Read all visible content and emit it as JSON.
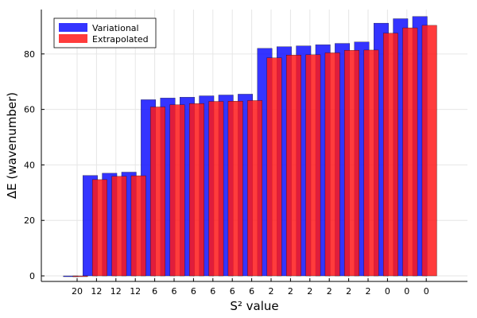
{
  "chart_data": {
    "type": "bar",
    "xlabel": "S² value",
    "ylabel": "ΔE (wavenumber)",
    "categories": [
      "20",
      "12",
      "12",
      "12",
      "6",
      "6",
      "6",
      "6",
      "6",
      "6",
      "2",
      "2",
      "2",
      "2",
      "2",
      "2",
      "0",
      "0",
      "0"
    ],
    "ylim": [
      -2,
      96
    ],
    "yticks": [
      0,
      20,
      40,
      60,
      80
    ],
    "grid": true,
    "legend_position": "top-left",
    "series": [
      {
        "name": "Variational",
        "color": "#1010ff",
        "values": [
          0,
          36.2,
          37.0,
          37.4,
          63.5,
          64.1,
          64.4,
          64.9,
          65.2,
          65.5,
          82.0,
          82.6,
          82.9,
          83.3,
          83.8,
          84.3,
          91.1,
          92.7,
          93.5
        ]
      },
      {
        "name": "Extrapolated",
        "color": "#ff1a1a",
        "values": [
          0,
          34.7,
          35.9,
          36.1,
          60.9,
          61.7,
          62.1,
          62.9,
          63.0,
          63.2,
          78.6,
          79.6,
          79.7,
          80.4,
          81.3,
          81.4,
          87.5,
          89.4,
          90.3
        ]
      }
    ]
  }
}
